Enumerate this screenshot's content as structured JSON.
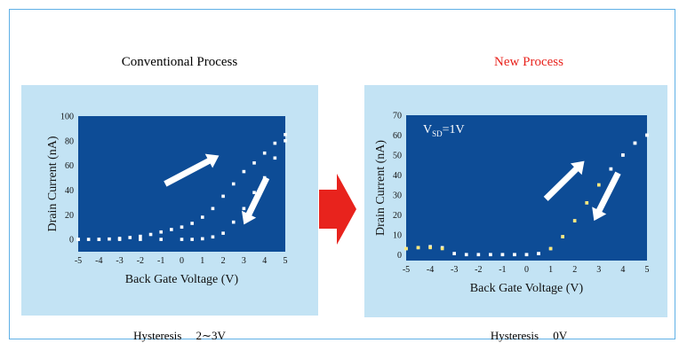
{
  "figure": {
    "left_title": "Conventional Process",
    "right_title": "New Process",
    "right_title_color": "#e8231d",
    "left_footer": "Hysteresis　 2∼3V",
    "right_footer": "Hysteresis　 0V",
    "frame_color": "#5fb0e6",
    "panel_color": "#c3e3f4",
    "plot_bg_color": "#0d4c96",
    "center_arrow_color": "#e8231d"
  },
  "chart_data": [
    {
      "type": "scatter",
      "title": "Conventional Process",
      "xlabel": "Back Gate Voltage (V)",
      "ylabel": "Drain Current (nA)",
      "xlim": [
        -5,
        5
      ],
      "ylim": [
        -10,
        100
      ],
      "xticks": [
        -5,
        -4,
        -3,
        -2,
        -1,
        0,
        1,
        2,
        3,
        4,
        5
      ],
      "yticks": [
        0,
        20,
        40,
        60,
        80,
        100
      ],
      "series": [
        {
          "x": [
            -5,
            -4.5,
            -4,
            -3.5,
            -3,
            -2.5,
            -2,
            -1.5,
            -1,
            -0.5,
            0,
            0.5,
            1,
            1.5,
            2,
            2.5,
            3,
            3.5,
            4,
            4.5,
            5
          ],
          "y": [
            0,
            0,
            0,
            0.3,
            0.8,
            1.5,
            2.5,
            4,
            6,
            8,
            10,
            13,
            18,
            25,
            35,
            45,
            55,
            62,
            70,
            78,
            85
          ]
        },
        {
          "x": [
            5,
            4.5,
            4,
            3.5,
            3,
            2.5,
            2,
            1.5,
            1,
            0.5,
            0,
            -1,
            -2,
            -3,
            -4,
            -5
          ],
          "y": [
            80,
            66,
            50,
            38,
            25,
            14,
            5,
            2,
            0.5,
            0,
            0,
            0,
            0,
            0,
            0,
            0
          ]
        }
      ],
      "markers": "white squares",
      "annotations": [
        "arrow up-right (forward sweep)",
        "arrow down-left (reverse sweep)"
      ]
    },
    {
      "type": "scatter",
      "title": "New Process",
      "xlabel": "Back Gate Voltage (V)",
      "ylabel": "Drain Current (nA)",
      "xlim": [
        -5,
        5
      ],
      "ylim": [
        -3,
        70
      ],
      "xticks": [
        -5,
        -4,
        -3,
        -2,
        -1,
        0,
        1,
        2,
        3,
        4,
        5
      ],
      "yticks": [
        0,
        10,
        20,
        30,
        40,
        50,
        60,
        70
      ],
      "annotation_label": "V",
      "annotation_sub": "SD",
      "annotation_rest": "=1V",
      "series": [
        {
          "x": [
            -5,
            -4.5,
            -4,
            -3.5,
            -3,
            -2.5,
            -2,
            -1.5,
            -1,
            -0.5,
            0,
            0.5,
            1,
            1.5,
            2,
            2.5,
            3,
            3.5,
            4,
            4.5,
            5
          ],
          "y": [
            3,
            3.5,
            4,
            3.5,
            0.5,
            0,
            0,
            0,
            0,
            0,
            0,
            0.5,
            3,
            9,
            17,
            26,
            35,
            43,
            50,
            56,
            60
          ]
        },
        {
          "x": [
            5,
            4.5,
            4,
            3.5,
            3,
            2.5,
            2,
            1.5,
            1,
            0.5,
            0,
            -0.5,
            -1,
            -1.5,
            -2,
            -2.5,
            -3,
            -3.5,
            -4,
            -4.5,
            -5
          ],
          "y": [
            60,
            56,
            50,
            43,
            35,
            26,
            17,
            9,
            3,
            0.5,
            0,
            0,
            0,
            0,
            0,
            0,
            0.5,
            3,
            3.5,
            3.5,
            3
          ]
        }
      ],
      "markers": "white and yellow squares",
      "annotations": [
        "arrow up-right (forward sweep)",
        "arrow down-left (reverse sweep)"
      ]
    }
  ]
}
